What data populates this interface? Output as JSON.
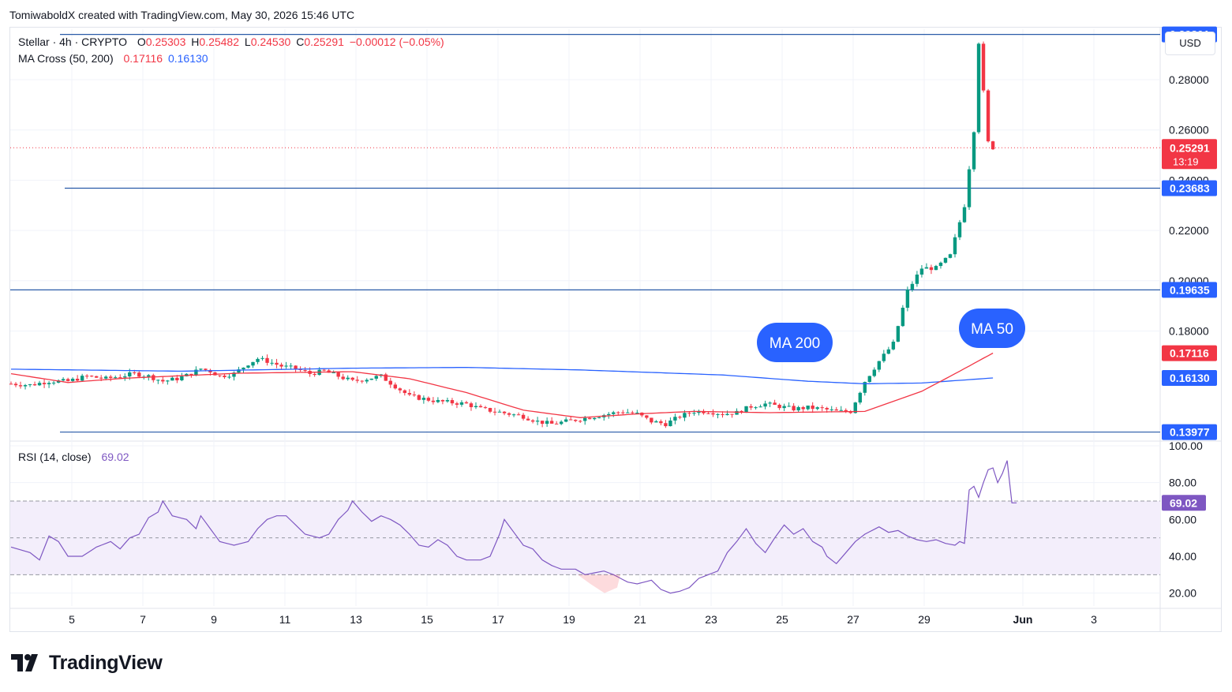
{
  "header": {
    "credit": "TomiwaboldX created with TradingView.com, May 30, 2026 15:46 UTC"
  },
  "legend": {
    "symbol": "Stellar · 4h · CRYPTO",
    "o_label": "O",
    "o_value": "0.25303",
    "h_label": "H",
    "h_value": "0.25482",
    "l_label": "L",
    "l_value": "0.24530",
    "c_label": "C",
    "c_value": "0.25291",
    "change": "−0.00012 (−0.05%)",
    "ma_label": "MA Cross (50, 200)",
    "ma50_value": "0.17116",
    "ma200_value": "0.16130",
    "rsi_label": "RSI (14, close)",
    "rsi_value": "69.02"
  },
  "currency": "USD",
  "brand": {
    "name": "TradingView",
    "icon": "tradingview-logo-icon"
  },
  "colors": {
    "up": "#089981",
    "down": "#f23645",
    "ma50": "#f23645",
    "ma200": "#2962ff",
    "hline": "#2a5ba8",
    "rsi": "#7e57c2",
    "rsi_band": "#f3eefb",
    "accent": "#2962ff"
  },
  "chart_data": [
    {
      "type": "candlestick",
      "title": "Stellar · 4h · CRYPTO",
      "x_ticks": [
        "5",
        "7",
        "9",
        "11",
        "13",
        "15",
        "17",
        "19",
        "21",
        "23",
        "25",
        "27",
        "29",
        "Jun",
        "3"
      ],
      "y_ticks": [
        "0.18000",
        "0.20000",
        "0.22000",
        "0.24000",
        "0.26000",
        "0.28000"
      ],
      "ylim": [
        0.1365,
        0.3001
      ],
      "horizontal_levels": [
        "0.29801",
        "0.23683",
        "0.19635",
        "0.13977"
      ],
      "last_price": "0.25291",
      "countdown": "13:19",
      "annotations": [
        "MA 200",
        "MA 50"
      ],
      "close_keypoints": [
        [
          0,
          0.159
        ],
        [
          4,
          0.1585
        ],
        [
          8,
          0.16
        ],
        [
          12,
          0.16
        ],
        [
          16,
          0.162
        ],
        [
          20,
          0.161
        ],
        [
          23,
          0.162
        ],
        [
          26,
          0.163
        ],
        [
          29,
          0.162
        ],
        [
          32,
          0.16
        ],
        [
          35,
          0.161
        ],
        [
          38,
          0.163
        ],
        [
          40,
          0.165
        ],
        [
          42,
          0.164
        ],
        [
          44,
          0.162
        ],
        [
          47,
          0.163
        ],
        [
          50,
          0.167
        ],
        [
          52,
          0.169
        ],
        [
          54,
          0.168
        ],
        [
          57,
          0.166
        ],
        [
          60,
          0.165
        ],
        [
          63,
          0.163
        ],
        [
          66,
          0.164
        ],
        [
          69,
          0.162
        ],
        [
          72,
          0.16
        ],
        [
          75,
          0.161
        ],
        [
          78,
          0.162
        ],
        [
          81,
          0.158
        ],
        [
          84,
          0.154
        ],
        [
          87,
          0.153
        ],
        [
          90,
          0.152
        ],
        [
          93,
          0.1515
        ],
        [
          96,
          0.151
        ],
        [
          99,
          0.149
        ],
        [
          102,
          0.148
        ],
        [
          105,
          0.147
        ],
        [
          108,
          0.146
        ],
        [
          111,
          0.144
        ],
        [
          114,
          0.143
        ],
        [
          117,
          0.144
        ],
        [
          120,
          0.145
        ],
        [
          123,
          0.146
        ],
        [
          126,
          0.147
        ],
        [
          129,
          0.148
        ],
        [
          132,
          0.147
        ],
        [
          135,
          0.144
        ],
        [
          138,
          0.143
        ],
        [
          141,
          0.146
        ],
        [
          144,
          0.148
        ],
        [
          147,
          0.148
        ],
        [
          150,
          0.147
        ],
        [
          153,
          0.1475
        ],
        [
          156,
          0.15
        ],
        [
          159,
          0.151
        ],
        [
          162,
          0.15
        ],
        [
          165,
          0.149
        ],
        [
          168,
          0.1495
        ],
        [
          171,
          0.149
        ],
        [
          174,
          0.148
        ],
        [
          177,
          0.148
        ],
        [
          180,
          0.16
        ],
        [
          183,
          0.168
        ],
        [
          186,
          0.175
        ],
        [
          189,
          0.196
        ],
        [
          192,
          0.205
        ],
        [
          195,
          0.205
        ],
        [
          198,
          0.21
        ],
        [
          201,
          0.23
        ],
        [
          203,
          0.26
        ],
        [
          204,
          0.295
        ],
        [
          205,
          0.275
        ],
        [
          206,
          0.255
        ],
        [
          207,
          0.253
        ]
      ],
      "ma50_keypoints": [
        [
          0,
          0.163
        ],
        [
          12,
          0.1595
        ],
        [
          24,
          0.1612
        ],
        [
          48,
          0.1632
        ],
        [
          72,
          0.1638
        ],
        [
          84,
          0.161
        ],
        [
          96,
          0.1555
        ],
        [
          108,
          0.1485
        ],
        [
          120,
          0.1455
        ],
        [
          132,
          0.147
        ],
        [
          144,
          0.148
        ],
        [
          160,
          0.1475
        ],
        [
          180,
          0.148
        ],
        [
          192,
          0.156
        ],
        [
          200,
          0.164
        ],
        [
          207,
          0.1712
        ]
      ],
      "ma200_keypoints": [
        [
          0,
          0.1648
        ],
        [
          36,
          0.164
        ],
        [
          72,
          0.1652
        ],
        [
          96,
          0.1655
        ],
        [
          120,
          0.1645
        ],
        [
          150,
          0.1625
        ],
        [
          168,
          0.16
        ],
        [
          180,
          0.159
        ],
        [
          192,
          0.1593
        ],
        [
          207,
          0.1613
        ]
      ]
    },
    {
      "type": "line",
      "title": "RSI (14, close)",
      "y_ticks": [
        "20.00",
        "40.00",
        "60.00",
        "80.00",
        "100.00"
      ],
      "ylim": [
        13,
        100
      ],
      "bands": [
        30,
        50,
        70
      ],
      "last_value": "69.02",
      "keypoints": [
        [
          0,
          45
        ],
        [
          4,
          42
        ],
        [
          6,
          38
        ],
        [
          8,
          51
        ],
        [
          10,
          48
        ],
        [
          12,
          40
        ],
        [
          15,
          40
        ],
        [
          18,
          45
        ],
        [
          21,
          48
        ],
        [
          23,
          44
        ],
        [
          25,
          50
        ],
        [
          27,
          52
        ],
        [
          29,
          61
        ],
        [
          31,
          64
        ],
        [
          32,
          70
        ],
        [
          34,
          62
        ],
        [
          37,
          60
        ],
        [
          39,
          55
        ],
        [
          40,
          62
        ],
        [
          42,
          55
        ],
        [
          44,
          48
        ],
        [
          47,
          46
        ],
        [
          50,
          48
        ],
        [
          52,
          55
        ],
        [
          54,
          60
        ],
        [
          56,
          62
        ],
        [
          58,
          62
        ],
        [
          60,
          57
        ],
        [
          62,
          52
        ],
        [
          65,
          50
        ],
        [
          67,
          52
        ],
        [
          69,
          60
        ],
        [
          71,
          65
        ],
        [
          72,
          70
        ],
        [
          74,
          64
        ],
        [
          76,
          59
        ],
        [
          78,
          62
        ],
        [
          80,
          60
        ],
        [
          82,
          57
        ],
        [
          84,
          52
        ],
        [
          86,
          46
        ],
        [
          88,
          45
        ],
        [
          90,
          49
        ],
        [
          92,
          46
        ],
        [
          94,
          40
        ],
        [
          96,
          38
        ],
        [
          99,
          38
        ],
        [
          101,
          40
        ],
        [
          103,
          52
        ],
        [
          104,
          60
        ],
        [
          106,
          53
        ],
        [
          108,
          46
        ],
        [
          110,
          44
        ],
        [
          112,
          38
        ],
        [
          114,
          35
        ],
        [
          116,
          33
        ],
        [
          119,
          33
        ],
        [
          121,
          30
        ],
        [
          123,
          31
        ],
        [
          125,
          32
        ],
        [
          127,
          30
        ],
        [
          130,
          26
        ],
        [
          132,
          25
        ],
        [
          135,
          27
        ],
        [
          137,
          22
        ],
        [
          139,
          20
        ],
        [
          141,
          21
        ],
        [
          143,
          23
        ],
        [
          145,
          28
        ],
        [
          147,
          30
        ],
        [
          149,
          32
        ],
        [
          151,
          42
        ],
        [
          153,
          48
        ],
        [
          155,
          55
        ],
        [
          157,
          47
        ],
        [
          159,
          42
        ],
        [
          161,
          50
        ],
        [
          163,
          57
        ],
        [
          165,
          52
        ],
        [
          167,
          55
        ],
        [
          169,
          48
        ],
        [
          171,
          45
        ],
        [
          172,
          40
        ],
        [
          174,
          36
        ],
        [
          176,
          42
        ],
        [
          178,
          48
        ],
        [
          180,
          52
        ],
        [
          183,
          56
        ],
        [
          185,
          53
        ],
        [
          187,
          54
        ],
        [
          189,
          51
        ],
        [
          191,
          49
        ],
        [
          193,
          48
        ],
        [
          195,
          49
        ],
        [
          197,
          47
        ],
        [
          199,
          46
        ],
        [
          200,
          48
        ],
        [
          201,
          47
        ],
        [
          202,
          76
        ],
        [
          203,
          78
        ],
        [
          204,
          72
        ],
        [
          205,
          80
        ],
        [
          206,
          87
        ],
        [
          207,
          88
        ],
        [
          208,
          80
        ],
        [
          209,
          85
        ],
        [
          210,
          92
        ],
        [
          211,
          69
        ],
        [
          212,
          69
        ]
      ]
    }
  ]
}
